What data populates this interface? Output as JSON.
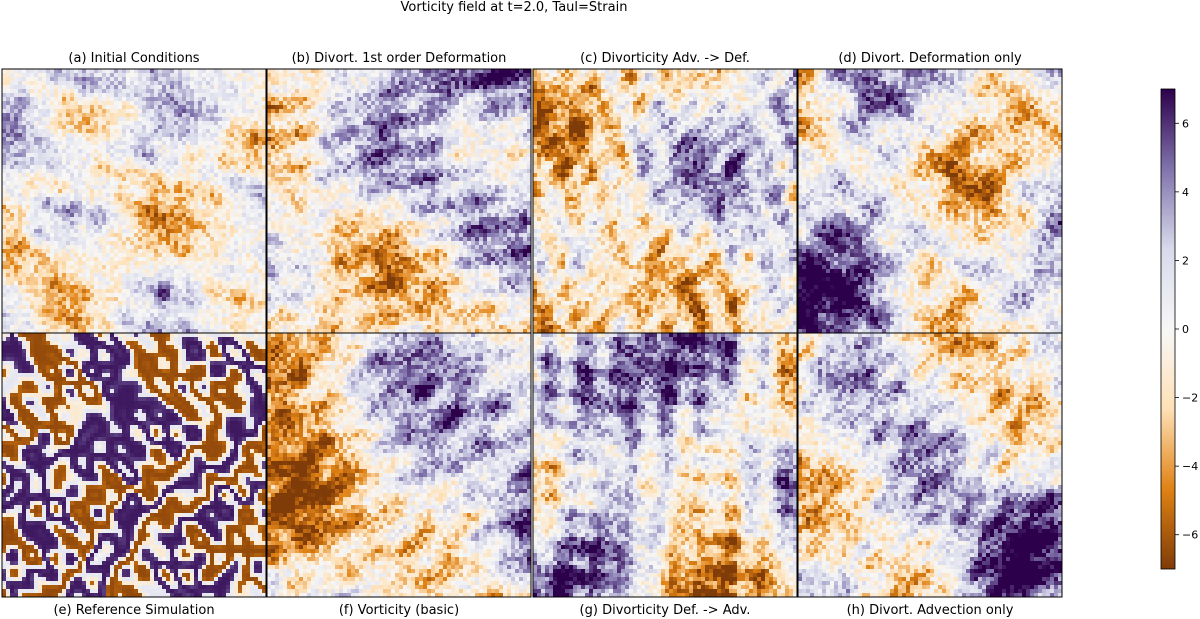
{
  "figure": {
    "suptitle": "Vorticity field at t=2.0, Taul=Strain"
  },
  "chart_data": {
    "type": "heatmap",
    "colormap": "PuOr",
    "colormap_stops": [
      "#7f3b08",
      "#e08214",
      "#fee0b6",
      "#f7f7f7",
      "#d8daeb",
      "#8073ac",
      "#2d004b"
    ],
    "color_range": [
      -7,
      7
    ],
    "colorbar": {
      "ticks": [
        -6,
        -4,
        -2,
        0,
        2,
        4,
        6
      ],
      "tick_labels": [
        "−6",
        "−4",
        "−2",
        "0",
        "2",
        "4",
        "6"
      ]
    },
    "panels": [
      {
        "label": "(a) Initial Conditions",
        "style": "noise"
      },
      {
        "label": "(b) Divort. 1st order Deformation",
        "style": "blobs"
      },
      {
        "label": "(c) Divorticity Adv. -> Def.",
        "style": "blobs"
      },
      {
        "label": "(d) Divort. Deformation only",
        "style": "blobs"
      },
      {
        "label": "(e) Reference Simulation",
        "style": "filaments"
      },
      {
        "label": "(f) Vorticity (basic)",
        "style": "blobs"
      },
      {
        "label": "(g) Divorticity Def. -> Adv.",
        "style": "blobs"
      },
      {
        "label": "(h) Divort. Advection only",
        "style": "blobs"
      }
    ]
  }
}
